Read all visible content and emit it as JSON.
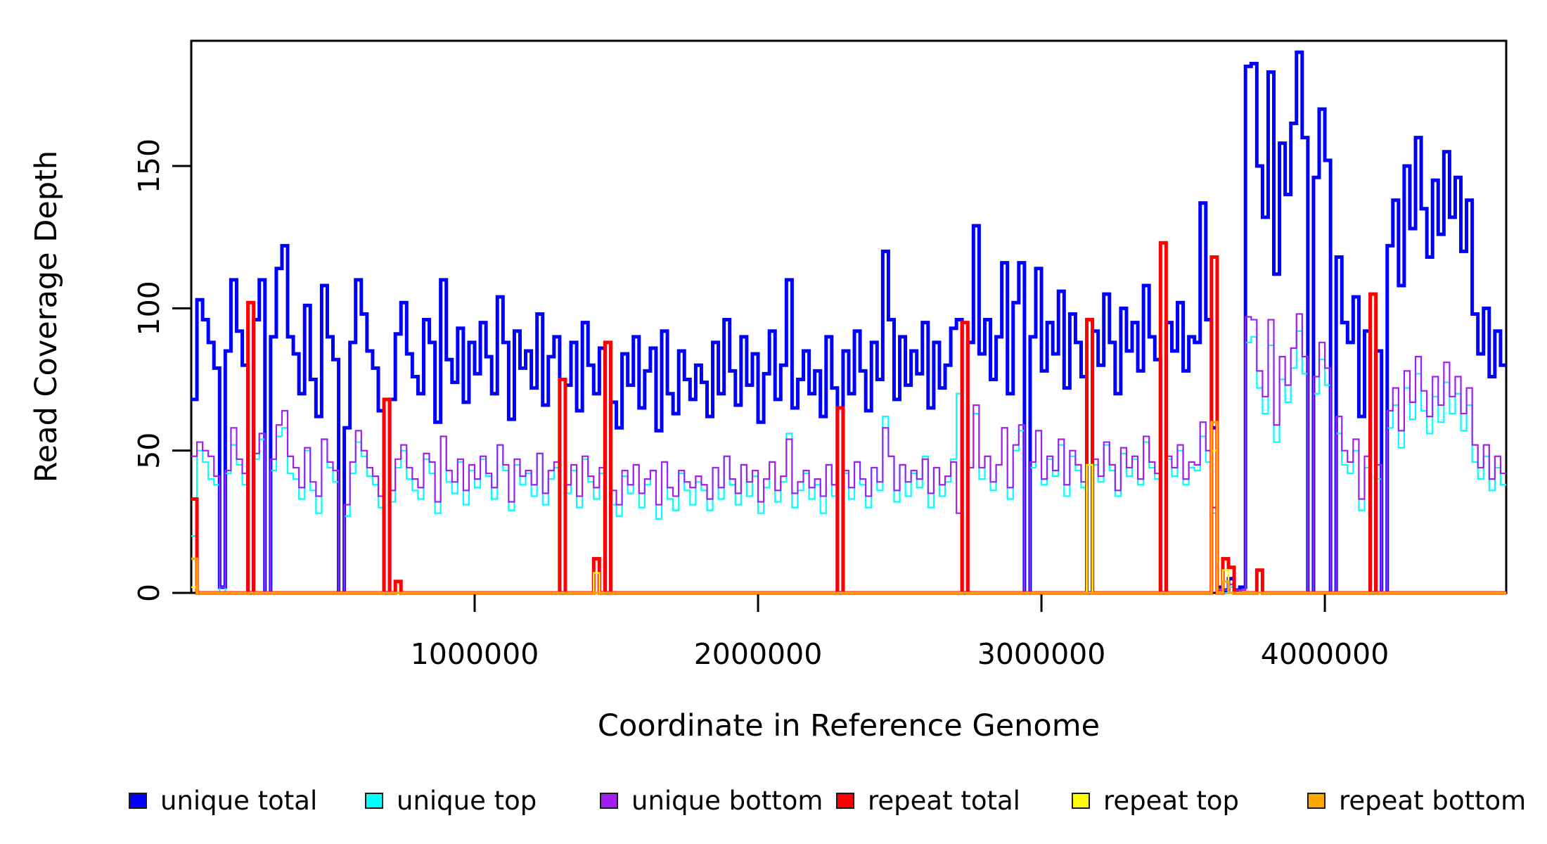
{
  "figure": {
    "xlabel": "Coordinate in Reference Genome",
    "ylabel": "Read Coverage Depth"
  },
  "legend": {
    "items": [
      {
        "label": "unique total",
        "color": "#0000ff"
      },
      {
        "label": "unique top",
        "color": "#00ffff"
      },
      {
        "label": "unique bottom",
        "color": "#a020f0"
      },
      {
        "label": "repeat total",
        "color": "#ff0000"
      },
      {
        "label": "repeat top",
        "color": "#ffff00"
      },
      {
        "label": "repeat bottom",
        "color": "#ffa500"
      }
    ]
  },
  "chart_data": {
    "type": "line",
    "step": true,
    "title": "",
    "xlabel": "Coordinate in Reference Genome",
    "ylabel": "Read Coverage Depth",
    "xlim": [
      0,
      4640000
    ],
    "ylim": [
      0,
      194
    ],
    "bin_size": 20000,
    "n_bins": 232,
    "grid": false,
    "legend_position": "bottom",
    "x_ticks": {
      "values": [
        1000000,
        2000000,
        3000000,
        4000000
      ],
      "labels": [
        "1000000",
        "2000000",
        "3000000",
        "4000000"
      ]
    },
    "y_ticks": {
      "values": [
        0,
        50,
        100,
        150
      ],
      "labels": [
        "0",
        "50",
        "100",
        "150"
      ]
    },
    "series": [
      {
        "name": "unique total",
        "color": "#0000ff",
        "lwd": 5,
        "values": [
          68,
          103,
          96,
          88,
          79,
          2,
          85,
          110,
          92,
          80,
          0,
          96,
          110,
          0,
          90,
          114,
          122,
          90,
          84,
          70,
          101,
          75,
          62,
          108,
          90,
          82,
          0,
          58,
          88,
          110,
          98,
          85,
          79,
          64,
          0,
          68,
          91,
          102,
          84,
          76,
          70,
          96,
          88,
          60,
          110,
          82,
          74,
          93,
          67,
          88,
          77,
          95,
          83,
          70,
          104,
          88,
          61,
          92,
          79,
          85,
          72,
          98,
          66,
          83,
          90,
          0,
          73,
          88,
          64,
          95,
          80,
          70,
          86,
          0,
          67,
          58,
          84,
          73,
          90,
          65,
          78,
          86,
          57,
          92,
          70,
          63,
          85,
          75,
          68,
          80,
          74,
          62,
          88,
          70,
          96,
          78,
          66,
          90,
          73,
          84,
          60,
          77,
          92,
          68,
          80,
          110,
          65,
          75,
          85,
          70,
          78,
          62,
          90,
          72,
          0,
          85,
          70,
          92,
          78,
          64,
          88,
          75,
          120,
          96,
          68,
          90,
          73,
          85,
          77,
          95,
          65,
          88,
          72,
          80,
          93,
          96,
          0,
          88,
          129,
          84,
          96,
          75,
          90,
          116,
          70,
          102,
          116,
          0,
          90,
          114,
          78,
          95,
          84,
          106,
          72,
          98,
          88,
          76,
          0,
          92,
          80,
          105,
          88,
          70,
          100,
          85,
          95,
          78,
          108,
          90,
          82,
          0,
          95,
          85,
          102,
          78,
          90,
          88,
          137,
          96,
          58,
          2,
          1,
          5,
          1,
          2,
          185,
          186,
          150,
          132,
          183,
          112,
          158,
          140,
          165,
          190,
          160,
          0,
          146,
          170,
          152,
          0,
          118,
          95,
          88,
          104,
          62,
          92,
          0,
          85,
          0,
          122,
          138,
          108,
          150,
          128,
          160,
          135,
          118,
          145,
          126,
          155,
          132,
          146,
          120,
          138,
          98,
          84,
          100,
          76,
          92,
          80
        ]
      },
      {
        "name": "unique top",
        "color": "#00ffff",
        "lwd": 2.2,
        "values": [
          20,
          50,
          46,
          40,
          38,
          0,
          42,
          52,
          45,
          38,
          0,
          47,
          54,
          0,
          43,
          55,
          58,
          42,
          40,
          33,
          50,
          36,
          28,
          54,
          44,
          39,
          0,
          27,
          42,
          53,
          48,
          41,
          38,
          30,
          0,
          32,
          44,
          50,
          40,
          36,
          33,
          47,
          42,
          28,
          55,
          39,
          35,
          46,
          31,
          43,
          37,
          47,
          41,
          33,
          52,
          43,
          29,
          45,
          38,
          42,
          34,
          49,
          31,
          40,
          44,
          0,
          35,
          43,
          30,
          47,
          39,
          33,
          42,
          0,
          31,
          27,
          41,
          35,
          45,
          30,
          38,
          43,
          26,
          46,
          33,
          29,
          42,
          36,
          31,
          39,
          36,
          29,
          44,
          33,
          48,
          38,
          31,
          45,
          34,
          41,
          28,
          37,
          46,
          32,
          39,
          56,
          30,
          36,
          42,
          33,
          38,
          28,
          45,
          34,
          0,
          42,
          33,
          46,
          38,
          30,
          44,
          36,
          62,
          48,
          32,
          45,
          34,
          42,
          37,
          48,
          30,
          44,
          34,
          39,
          47,
          70,
          0,
          44,
          63,
          40,
          48,
          36,
          45,
          58,
          33,
          50,
          57,
          0,
          44,
          57,
          38,
          47,
          41,
          52,
          34,
          48,
          43,
          37,
          0,
          45,
          39,
          52,
          43,
          34,
          49,
          41,
          47,
          38,
          53,
          44,
          40,
          0,
          47,
          41,
          50,
          38,
          44,
          43,
          55,
          46,
          28,
          1,
          0,
          2,
          0,
          1,
          88,
          90,
          72,
          63,
          87,
          53,
          75,
          67,
          79,
          92,
          77,
          0,
          70,
          82,
          73,
          0,
          56,
          45,
          42,
          50,
          29,
          44,
          0,
          40,
          0,
          58,
          66,
          51,
          72,
          61,
          77,
          64,
          56,
          69,
          60,
          74,
          63,
          70,
          57,
          66,
          46,
          40,
          48,
          36,
          44,
          38
        ]
      },
      {
        "name": "unique bottom",
        "color": "#a020f0",
        "lwd": 2.2,
        "values": [
          48,
          53,
          50,
          48,
          41,
          2,
          43,
          58,
          47,
          42,
          0,
          49,
          56,
          0,
          47,
          59,
          64,
          48,
          44,
          37,
          51,
          39,
          34,
          54,
          46,
          43,
          0,
          31,
          46,
          57,
          50,
          44,
          41,
          34,
          0,
          36,
          47,
          52,
          44,
          40,
          37,
          49,
          46,
          32,
          55,
          43,
          39,
          47,
          36,
          45,
          40,
          48,
          42,
          37,
          52,
          45,
          32,
          47,
          41,
          43,
          38,
          49,
          35,
          43,
          46,
          0,
          38,
          45,
          34,
          48,
          41,
          37,
          44,
          0,
          36,
          31,
          43,
          38,
          45,
          35,
          40,
          43,
          31,
          46,
          37,
          34,
          43,
          39,
          37,
          41,
          38,
          33,
          44,
          37,
          48,
          40,
          35,
          45,
          39,
          43,
          32,
          40,
          46,
          36,
          41,
          54,
          35,
          39,
          43,
          37,
          40,
          34,
          45,
          38,
          0,
          43,
          37,
          46,
          40,
          34,
          44,
          39,
          58,
          48,
          36,
          45,
          39,
          43,
          40,
          47,
          35,
          44,
          38,
          41,
          46,
          28,
          0,
          44,
          66,
          44,
          48,
          39,
          45,
          58,
          37,
          52,
          59,
          0,
          46,
          57,
          40,
          48,
          43,
          54,
          38,
          50,
          45,
          39,
          0,
          47,
          41,
          53,
          45,
          36,
          51,
          44,
          48,
          40,
          55,
          46,
          42,
          0,
          48,
          44,
          52,
          40,
          46,
          45,
          60,
          50,
          30,
          1,
          1,
          3,
          1,
          1,
          97,
          96,
          78,
          69,
          96,
          59,
          83,
          73,
          86,
          98,
          83,
          0,
          76,
          88,
          79,
          0,
          62,
          50,
          46,
          54,
          33,
          48,
          0,
          45,
          0,
          64,
          72,
          57,
          78,
          67,
          83,
          71,
          62,
          76,
          66,
          81,
          69,
          76,
          63,
          72,
          52,
          44,
          52,
          40,
          48,
          42
        ]
      },
      {
        "name": "repeat total",
        "color": "#ff0000",
        "lwd": 5,
        "baseline": 0,
        "spikes": [
          [
            0,
            33
          ],
          [
            10,
            102
          ],
          [
            34,
            68
          ],
          [
            36,
            4
          ],
          [
            65,
            75
          ],
          [
            71,
            12
          ],
          [
            73,
            88
          ],
          [
            114,
            65
          ],
          [
            136,
            95
          ],
          [
            158,
            96
          ],
          [
            171,
            123
          ],
          [
            180,
            118
          ],
          [
            182,
            12
          ],
          [
            183,
            9
          ],
          [
            188,
            8
          ],
          [
            208,
            105
          ]
        ]
      },
      {
        "name": "repeat top",
        "color": "#ffff00",
        "lwd": 2.5,
        "baseline": 0,
        "spikes": [
          [
            0,
            2
          ],
          [
            71,
            7
          ],
          [
            158,
            45
          ],
          [
            180,
            50
          ],
          [
            182,
            8
          ]
        ]
      },
      {
        "name": "repeat bottom",
        "color": "#ffa500",
        "lwd": 3.5,
        "baseline": 0,
        "spikes": [
          [
            0,
            12
          ],
          [
            180,
            60
          ],
          [
            182,
            4
          ]
        ]
      }
    ]
  }
}
